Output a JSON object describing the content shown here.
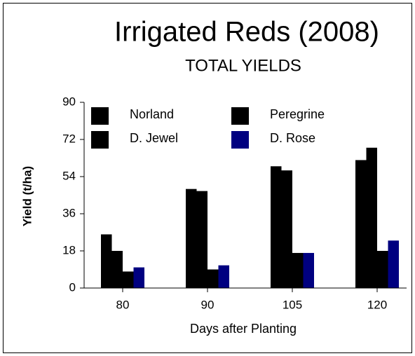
{
  "chart_data": {
    "type": "bar",
    "title": "Irrigated  Reds (2008)",
    "subtitle": "TOTAL YIELDS",
    "x_label": "Days after Planting",
    "y_label": "Yield (t/ha)",
    "categories": [
      "80",
      "90",
      "105",
      "120"
    ],
    "series": [
      {
        "name": "Norland",
        "color": "#000000",
        "values": [
          26,
          48,
          59,
          62
        ]
      },
      {
        "name": "Peregrine",
        "color": "#000000",
        "values": [
          18,
          47,
          57,
          68
        ]
      },
      {
        "name": "D. Jewel",
        "color": "#000000",
        "values": [
          8,
          9,
          17,
          18
        ]
      },
      {
        "name": "D. Rose",
        "color": "#000080",
        "values": [
          10,
          11,
          17,
          23
        ]
      }
    ],
    "ylim": [
      0,
      90
    ],
    "yticks": [
      0,
      18,
      36,
      54,
      72,
      90
    ],
    "grid": false
  }
}
